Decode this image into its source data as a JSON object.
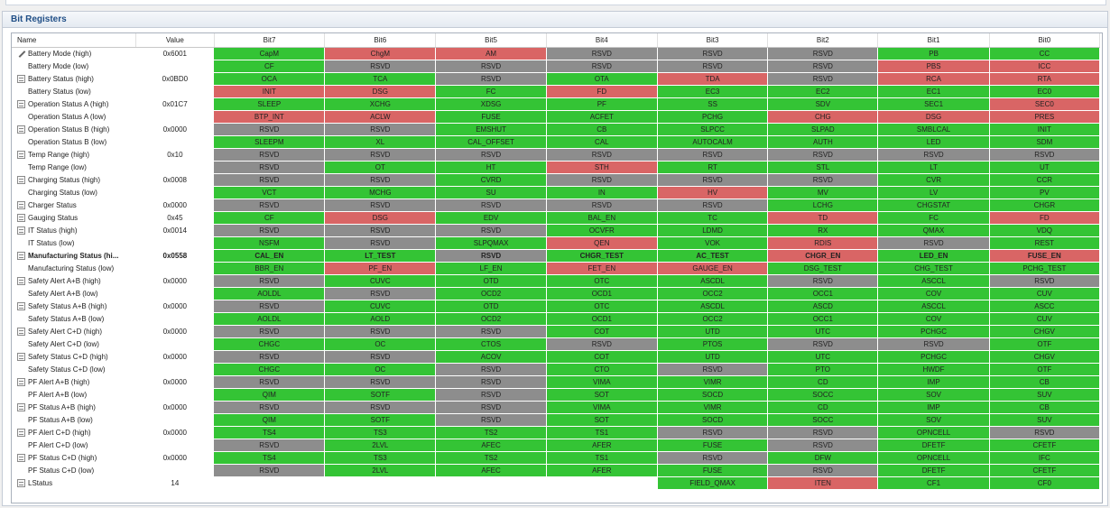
{
  "panel": {
    "title": "Bit Registers"
  },
  "headers": {
    "name": "Name",
    "value": "Value",
    "bits": [
      "Bit7",
      "Bit6",
      "Bit5",
      "Bit4",
      "Bit3",
      "Bit2",
      "Bit1",
      "Bit0"
    ]
  },
  "colors": {
    "green": "#34c435",
    "red": "#d96565",
    "gray": "#8d8d8d"
  },
  "rows": [
    {
      "name": "Battery Mode (high)",
      "value": "0x6001",
      "icon": "pencil",
      "bits": [
        [
          "CapM",
          "g"
        ],
        [
          "ChgM",
          "r"
        ],
        [
          "AM",
          "r"
        ],
        [
          "RSVD",
          "x"
        ],
        [
          "RSVD",
          "x"
        ],
        [
          "RSVD",
          "x"
        ],
        [
          "PB",
          "g"
        ],
        [
          "CC",
          "g"
        ]
      ]
    },
    {
      "name": "Battery Mode (low)",
      "value": "",
      "icon": "",
      "bits": [
        [
          "CF",
          "g"
        ],
        [
          "RSVD",
          "x"
        ],
        [
          "RSVD",
          "x"
        ],
        [
          "RSVD",
          "x"
        ],
        [
          "RSVD",
          "x"
        ],
        [
          "RSVD",
          "x"
        ],
        [
          "PBS",
          "r"
        ],
        [
          "ICC",
          "r"
        ]
      ]
    },
    {
      "name": "Battery Status (high)",
      "value": "0x0BD0",
      "icon": "expand",
      "bits": [
        [
          "OCA",
          "g"
        ],
        [
          "TCA",
          "g"
        ],
        [
          "RSVD",
          "x"
        ],
        [
          "OTA",
          "g"
        ],
        [
          "TDA",
          "r"
        ],
        [
          "RSVD",
          "x"
        ],
        [
          "RCA",
          "r"
        ],
        [
          "RTA",
          "r"
        ]
      ]
    },
    {
      "name": "Battery Status (low)",
      "value": "",
      "icon": "",
      "bits": [
        [
          "INIT",
          "r"
        ],
        [
          "DSG",
          "r"
        ],
        [
          "FC",
          "g"
        ],
        [
          "FD",
          "r"
        ],
        [
          "EC3",
          "g"
        ],
        [
          "EC2",
          "g"
        ],
        [
          "EC1",
          "g"
        ],
        [
          "EC0",
          "g"
        ]
      ]
    },
    {
      "name": "Operation Status A (high)",
      "value": "0x01C7",
      "icon": "expand",
      "bits": [
        [
          "SLEEP",
          "g"
        ],
        [
          "XCHG",
          "g"
        ],
        [
          "XDSG",
          "g"
        ],
        [
          "PF",
          "g"
        ],
        [
          "SS",
          "g"
        ],
        [
          "SDV",
          "g"
        ],
        [
          "SEC1",
          "g"
        ],
        [
          "SEC0",
          "r"
        ]
      ]
    },
    {
      "name": "Operation Status A (low)",
      "value": "",
      "icon": "",
      "bits": [
        [
          "BTP_INT",
          "r"
        ],
        [
          "ACLW",
          "r"
        ],
        [
          "FUSE",
          "g"
        ],
        [
          "ACFET",
          "g"
        ],
        [
          "PCHG",
          "g"
        ],
        [
          "CHG",
          "r"
        ],
        [
          "DSG",
          "r"
        ],
        [
          "PRES",
          "r"
        ]
      ]
    },
    {
      "name": "Operation Status B (high)",
      "value": "0x0000",
      "icon": "expand",
      "bits": [
        [
          "RSVD",
          "x"
        ],
        [
          "RSVD",
          "x"
        ],
        [
          "EMSHUT",
          "g"
        ],
        [
          "CB",
          "g"
        ],
        [
          "SLPCC",
          "g"
        ],
        [
          "SLPAD",
          "g"
        ],
        [
          "SMBLCAL",
          "g"
        ],
        [
          "INIT",
          "g"
        ]
      ]
    },
    {
      "name": "Operation Status B (low)",
      "value": "",
      "icon": "",
      "bits": [
        [
          "SLEEPM",
          "g"
        ],
        [
          "XL",
          "g"
        ],
        [
          "CAL_OFFSET",
          "g"
        ],
        [
          "CAL",
          "g"
        ],
        [
          "AUTOCALM",
          "g"
        ],
        [
          "AUTH",
          "g"
        ],
        [
          "LED",
          "g"
        ],
        [
          "SDM",
          "g"
        ]
      ]
    },
    {
      "name": "Temp Range (high)",
      "value": "0x10",
      "icon": "expand",
      "bits": [
        [
          "RSVD",
          "x"
        ],
        [
          "RSVD",
          "x"
        ],
        [
          "RSVD",
          "x"
        ],
        [
          "RSVD",
          "x"
        ],
        [
          "RSVD",
          "x"
        ],
        [
          "RSVD",
          "x"
        ],
        [
          "RSVD",
          "x"
        ],
        [
          "RSVD",
          "x"
        ]
      ]
    },
    {
      "name": "Temp Range (low)",
      "value": "",
      "icon": "",
      "bits": [
        [
          "RSVD",
          "x"
        ],
        [
          "OT",
          "g"
        ],
        [
          "HT",
          "g"
        ],
        [
          "STH",
          "r"
        ],
        [
          "RT",
          "g"
        ],
        [
          "STL",
          "g"
        ],
        [
          "LT",
          "g"
        ],
        [
          "UT",
          "g"
        ]
      ]
    },
    {
      "name": "Charging Status (high)",
      "value": "0x0008",
      "icon": "expand",
      "bits": [
        [
          "RSVD",
          "x"
        ],
        [
          "RSVD",
          "x"
        ],
        [
          "CVRD",
          "g"
        ],
        [
          "RSVD",
          "x"
        ],
        [
          "RSVD",
          "x"
        ],
        [
          "RSVD",
          "x"
        ],
        [
          "CVR",
          "g"
        ],
        [
          "CCR",
          "g"
        ]
      ]
    },
    {
      "name": "Charging Status (low)",
      "value": "",
      "icon": "",
      "bits": [
        [
          "VCT",
          "g"
        ],
        [
          "MCHG",
          "g"
        ],
        [
          "SU",
          "g"
        ],
        [
          "IN",
          "g"
        ],
        [
          "HV",
          "r"
        ],
        [
          "MV",
          "g"
        ],
        [
          "LV",
          "g"
        ],
        [
          "PV",
          "g"
        ]
      ]
    },
    {
      "name": "Charger Status",
      "value": "0x0000",
      "icon": "expand",
      "bits": [
        [
          "RSVD",
          "x"
        ],
        [
          "RSVD",
          "x"
        ],
        [
          "RSVD",
          "x"
        ],
        [
          "RSVD",
          "x"
        ],
        [
          "RSVD",
          "x"
        ],
        [
          "LCHG",
          "g"
        ],
        [
          "CHGSTAT",
          "g"
        ],
        [
          "CHGR",
          "g"
        ]
      ]
    },
    {
      "name": "Gauging Status",
      "value": "0x45",
      "icon": "expand",
      "bits": [
        [
          "CF",
          "g"
        ],
        [
          "DSG",
          "r"
        ],
        [
          "EDV",
          "g"
        ],
        [
          "BAL_EN",
          "g"
        ],
        [
          "TC",
          "g"
        ],
        [
          "TD",
          "r"
        ],
        [
          "FC",
          "g"
        ],
        [
          "FD",
          "r"
        ]
      ]
    },
    {
      "name": "IT Status (high)",
      "value": "0x0014",
      "icon": "expand",
      "bits": [
        [
          "RSVD",
          "x"
        ],
        [
          "RSVD",
          "x"
        ],
        [
          "RSVD",
          "x"
        ],
        [
          "OCVFR",
          "g"
        ],
        [
          "LDMD",
          "g"
        ],
        [
          "RX",
          "g"
        ],
        [
          "QMAX",
          "g"
        ],
        [
          "VDQ",
          "g"
        ]
      ]
    },
    {
      "name": "IT Status (low)",
      "value": "",
      "icon": "",
      "bits": [
        [
          "NSFM",
          "g"
        ],
        [
          "RSVD",
          "x"
        ],
        [
          "SLPQMAX",
          "g"
        ],
        [
          "QEN",
          "r"
        ],
        [
          "VOK",
          "g"
        ],
        [
          "RDIS",
          "r"
        ],
        [
          "RSVD",
          "x"
        ],
        [
          "REST",
          "g"
        ]
      ]
    },
    {
      "name": "Manufacturing Status (hi...",
      "value": "0x0558",
      "icon": "expand",
      "bold": true,
      "bits": [
        [
          "CAL_EN",
          "g"
        ],
        [
          "LT_TEST",
          "g"
        ],
        [
          "RSVD",
          "x"
        ],
        [
          "CHGR_TEST",
          "g"
        ],
        [
          "AC_TEST",
          "g"
        ],
        [
          "CHGR_EN",
          "r"
        ],
        [
          "LED_EN",
          "g"
        ],
        [
          "FUSE_EN",
          "r"
        ]
      ]
    },
    {
      "name": "Manufacturing Status (low)",
      "value": "",
      "icon": "",
      "bits": [
        [
          "BBR_EN",
          "g"
        ],
        [
          "PF_EN",
          "r"
        ],
        [
          "LF_EN",
          "g"
        ],
        [
          "FET_EN",
          "r"
        ],
        [
          "GAUGE_EN",
          "r"
        ],
        [
          "DSG_TEST",
          "g"
        ],
        [
          "CHG_TEST",
          "g"
        ],
        [
          "PCHG_TEST",
          "g"
        ]
      ]
    },
    {
      "name": "Safety Alert A+B (high)",
      "value": "0x0000",
      "icon": "expand",
      "bits": [
        [
          "RSVD",
          "x"
        ],
        [
          "CUVC",
          "g"
        ],
        [
          "OTD",
          "g"
        ],
        [
          "OTC",
          "g"
        ],
        [
          "ASCDL",
          "g"
        ],
        [
          "RSVD",
          "x"
        ],
        [
          "ASCCL",
          "g"
        ],
        [
          "RSVD",
          "x"
        ]
      ]
    },
    {
      "name": "Safety Alert A+B (low)",
      "value": "",
      "icon": "",
      "bits": [
        [
          "AOLDL",
          "g"
        ],
        [
          "RSVD",
          "x"
        ],
        [
          "OCD2",
          "g"
        ],
        [
          "OCD1",
          "g"
        ],
        [
          "OCC2",
          "g"
        ],
        [
          "OCC1",
          "g"
        ],
        [
          "COV",
          "g"
        ],
        [
          "CUV",
          "g"
        ]
      ]
    },
    {
      "name": "Safety Status A+B (high)",
      "value": "0x0000",
      "icon": "expand",
      "bits": [
        [
          "RSVD",
          "x"
        ],
        [
          "CUVC",
          "g"
        ],
        [
          "OTD",
          "g"
        ],
        [
          "OTC",
          "g"
        ],
        [
          "ASCDL",
          "g"
        ],
        [
          "ASCD",
          "g"
        ],
        [
          "ASCCL",
          "g"
        ],
        [
          "ASCC",
          "g"
        ]
      ]
    },
    {
      "name": "Safety Status A+B (low)",
      "value": "",
      "icon": "",
      "bits": [
        [
          "AOLDL",
          "g"
        ],
        [
          "AOLD",
          "g"
        ],
        [
          "OCD2",
          "g"
        ],
        [
          "OCD1",
          "g"
        ],
        [
          "OCC2",
          "g"
        ],
        [
          "OCC1",
          "g"
        ],
        [
          "COV",
          "g"
        ],
        [
          "CUV",
          "g"
        ]
      ]
    },
    {
      "name": "Safety Alert C+D (high)",
      "value": "0x0000",
      "icon": "expand",
      "bits": [
        [
          "RSVD",
          "x"
        ],
        [
          "RSVD",
          "x"
        ],
        [
          "RSVD",
          "x"
        ],
        [
          "COT",
          "g"
        ],
        [
          "UTD",
          "g"
        ],
        [
          "UTC",
          "g"
        ],
        [
          "PCHGC",
          "g"
        ],
        [
          "CHGV",
          "g"
        ]
      ]
    },
    {
      "name": "Safety Alert C+D (low)",
      "value": "",
      "icon": "",
      "bits": [
        [
          "CHGC",
          "g"
        ],
        [
          "OC",
          "g"
        ],
        [
          "CTOS",
          "g"
        ],
        [
          "RSVD",
          "x"
        ],
        [
          "PTOS",
          "g"
        ],
        [
          "RSVD",
          "x"
        ],
        [
          "RSVD",
          "x"
        ],
        [
          "OTF",
          "g"
        ]
      ]
    },
    {
      "name": "Safety Status C+D (high)",
      "value": "0x0000",
      "icon": "expand",
      "bits": [
        [
          "RSVD",
          "x"
        ],
        [
          "RSVD",
          "x"
        ],
        [
          "ACOV",
          "g"
        ],
        [
          "COT",
          "g"
        ],
        [
          "UTD",
          "g"
        ],
        [
          "UTC",
          "g"
        ],
        [
          "PCHGC",
          "g"
        ],
        [
          "CHGV",
          "g"
        ]
      ]
    },
    {
      "name": "Safety Status C+D (low)",
      "value": "",
      "icon": "",
      "bits": [
        [
          "CHGC",
          "g"
        ],
        [
          "OC",
          "g"
        ],
        [
          "RSVD",
          "x"
        ],
        [
          "CTO",
          "g"
        ],
        [
          "RSVD",
          "x"
        ],
        [
          "PTO",
          "g"
        ],
        [
          "HWDF",
          "g"
        ],
        [
          "OTF",
          "g"
        ]
      ]
    },
    {
      "name": "PF Alert A+B (high)",
      "value": "0x0000",
      "icon": "expand",
      "bits": [
        [
          "RSVD",
          "x"
        ],
        [
          "RSVD",
          "x"
        ],
        [
          "RSVD",
          "x"
        ],
        [
          "VIMA",
          "g"
        ],
        [
          "VIMR",
          "g"
        ],
        [
          "CD",
          "g"
        ],
        [
          "IMP",
          "g"
        ],
        [
          "CB",
          "g"
        ]
      ]
    },
    {
      "name": "PF Alert A+B (low)",
      "value": "",
      "icon": "",
      "bits": [
        [
          "QIM",
          "g"
        ],
        [
          "SOTF",
          "g"
        ],
        [
          "RSVD",
          "x"
        ],
        [
          "SOT",
          "g"
        ],
        [
          "SOCD",
          "g"
        ],
        [
          "SOCC",
          "g"
        ],
        [
          "SOV",
          "g"
        ],
        [
          "SUV",
          "g"
        ]
      ]
    },
    {
      "name": "PF Status A+B (high)",
      "value": "0x0000",
      "icon": "expand",
      "bits": [
        [
          "RSVD",
          "x"
        ],
        [
          "RSVD",
          "x"
        ],
        [
          "RSVD",
          "x"
        ],
        [
          "VIMA",
          "g"
        ],
        [
          "VIMR",
          "g"
        ],
        [
          "CD",
          "g"
        ],
        [
          "IMP",
          "g"
        ],
        [
          "CB",
          "g"
        ]
      ]
    },
    {
      "name": "PF Status A+B (low)",
      "value": "",
      "icon": "",
      "bits": [
        [
          "QIM",
          "g"
        ],
        [
          "SOTF",
          "g"
        ],
        [
          "RSVD",
          "x"
        ],
        [
          "SOT",
          "g"
        ],
        [
          "SOCD",
          "g"
        ],
        [
          "SOCC",
          "g"
        ],
        [
          "SOV",
          "g"
        ],
        [
          "SUV",
          "g"
        ]
      ]
    },
    {
      "name": "PF Alert C+D (high)",
      "value": "0x0000",
      "icon": "expand",
      "bits": [
        [
          "TS4",
          "g"
        ],
        [
          "TS3",
          "g"
        ],
        [
          "TS2",
          "g"
        ],
        [
          "TS1",
          "g"
        ],
        [
          "RSVD",
          "x"
        ],
        [
          "RSVD",
          "x"
        ],
        [
          "OPNCELL",
          "g"
        ],
        [
          "RSVD",
          "x"
        ]
      ]
    },
    {
      "name": "PF Alert C+D (low)",
      "value": "",
      "icon": "",
      "bits": [
        [
          "RSVD",
          "x"
        ],
        [
          "2LVL",
          "g"
        ],
        [
          "AFEC",
          "g"
        ],
        [
          "AFER",
          "g"
        ],
        [
          "FUSE",
          "g"
        ],
        [
          "RSVD",
          "x"
        ],
        [
          "DFETF",
          "g"
        ],
        [
          "CFETF",
          "g"
        ]
      ]
    },
    {
      "name": "PF Status C+D (high)",
      "value": "0x0000",
      "icon": "expand",
      "bits": [
        [
          "TS4",
          "g"
        ],
        [
          "TS3",
          "g"
        ],
        [
          "TS2",
          "g"
        ],
        [
          "TS1",
          "g"
        ],
        [
          "RSVD",
          "x"
        ],
        [
          "DFW",
          "g"
        ],
        [
          "OPNCELL",
          "g"
        ],
        [
          "IFC",
          "g"
        ]
      ]
    },
    {
      "name": "PF Status C+D (low)",
      "value": "",
      "icon": "",
      "bits": [
        [
          "RSVD",
          "x"
        ],
        [
          "2LVL",
          "g"
        ],
        [
          "AFEC",
          "g"
        ],
        [
          "AFER",
          "g"
        ],
        [
          "FUSE",
          "g"
        ],
        [
          "RSVD",
          "x"
        ],
        [
          "DFETF",
          "g"
        ],
        [
          "CFETF",
          "g"
        ]
      ]
    },
    {
      "name": "LStatus",
      "value": "14",
      "icon": "expand",
      "bits": [
        [
          "",
          "n"
        ],
        [
          "",
          "n"
        ],
        [
          "",
          "n"
        ],
        [
          "",
          "n"
        ],
        [
          "FIELD_QMAX",
          "g"
        ],
        [
          "ITEN",
          "r"
        ],
        [
          "CF1",
          "g"
        ],
        [
          "CF0",
          "g"
        ]
      ]
    }
  ]
}
